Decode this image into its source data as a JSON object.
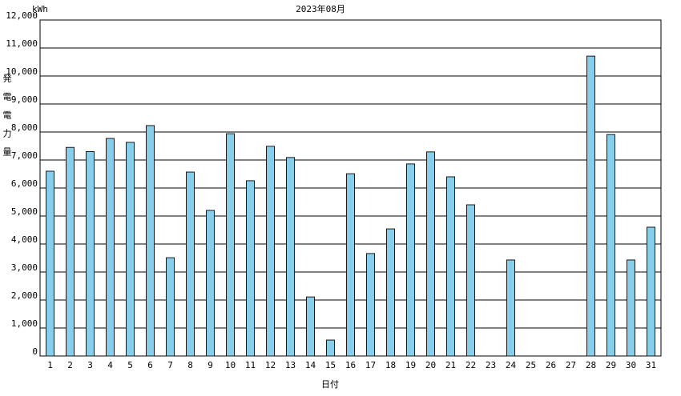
{
  "chart_data": {
    "type": "bar",
    "title": "2023年08月",
    "unit": "kWh",
    "y_label": "発電電力量",
    "x_label": "日付",
    "categories": [
      "1",
      "2",
      "3",
      "4",
      "5",
      "6",
      "7",
      "8",
      "9",
      "10",
      "11",
      "12",
      "13",
      "14",
      "15",
      "16",
      "17",
      "18",
      "19",
      "20",
      "21",
      "22",
      "23",
      "24",
      "25",
      "26",
      "27",
      "28",
      "29",
      "30",
      "31"
    ],
    "values": [
      6600,
      7450,
      7300,
      7770,
      7630,
      8230,
      3510,
      6570,
      5200,
      7940,
      6260,
      7490,
      7090,
      2110,
      570,
      6510,
      3660,
      4540,
      6860,
      7290,
      6400,
      5400,
      0,
      3430,
      0,
      0,
      0,
      10710,
      7910,
      3430,
      4600
    ],
    "color": "#87ceeb",
    "ylim": [
      0,
      12000
    ],
    "yticks": [
      0,
      {
        "value": 1000,
        "label": "1,000"
      },
      {
        "value": 2000,
        "label": "2,000"
      },
      {
        "value": 3000,
        "label": "3,000"
      },
      {
        "value": 4000,
        "label": "4,000"
      },
      {
        "value": 5000,
        "label": "5,000"
      },
      {
        "value": 6000,
        "label": "6,000"
      },
      {
        "value": 7000,
        "label": "7,000"
      },
      {
        "value": 8000,
        "label": "8,000"
      },
      {
        "value": 9000,
        "label": "9,000"
      },
      {
        "value": 10000,
        "label": "10,000"
      },
      {
        "value": 11000,
        "label": "11,000"
      },
      {
        "value": 12000,
        "label": "12,000"
      }
    ],
    "grid": true
  }
}
